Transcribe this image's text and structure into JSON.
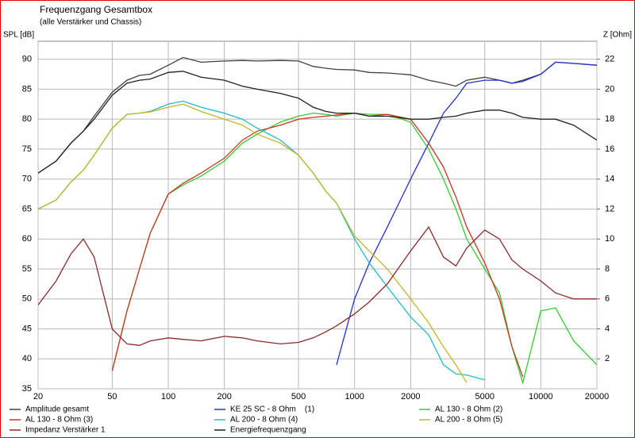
{
  "chart_data": {
    "type": "line",
    "title": "Frequenzgang Gesamtbox",
    "subtitle": "(alle Verstärker und Chassis)",
    "y_label": "SPL [dB]",
    "y2_label": "Z [Ohm]",
    "log_x": true,
    "grid": true,
    "legend": "bottom",
    "xlim": [
      20,
      20000
    ],
    "xticks": [
      20,
      50,
      100,
      200,
      500,
      1000,
      2000,
      5000,
      10000,
      20000
    ],
    "ylim": [
      35,
      93
    ],
    "yticks": [
      35,
      40,
      45,
      50,
      55,
      60,
      65,
      70,
      75,
      80,
      85,
      90
    ],
    "y2lim": [
      0,
      23.2
    ],
    "y2ticks": [
      2,
      4,
      6,
      8,
      10,
      12,
      14,
      16,
      18,
      20,
      22
    ],
    "x": [
      20,
      25,
      30,
      35,
      40,
      50,
      60,
      70,
      80,
      100,
      120,
      150,
      200,
      250,
      300,
      400,
      500,
      600,
      700,
      800,
      1000,
      1200,
      1500,
      2000,
      2500,
      3000,
      3500,
      4000,
      5000,
      6000,
      7000,
      8000,
      10000,
      12000,
      15000,
      20000
    ],
    "series": [
      {
        "name": "Amplitude gesamt",
        "color": "#404040",
        "values": [
          71,
          73,
          76,
          78,
          80.5,
          84.5,
          86.5,
          87.3,
          87.5,
          89,
          90.3,
          89.5,
          89.7,
          89.8,
          89.7,
          89.8,
          89.7,
          88.8,
          88.5,
          88.3,
          88.2,
          87.8,
          87.7,
          87.4,
          86.5,
          86,
          85.5,
          86.5,
          87,
          86.5,
          86,
          86.5,
          87.5,
          89.5,
          89.3,
          89
        ]
      },
      {
        "name": "KE 25 SC - 8 Ohm    (1)",
        "color": "#2233cc",
        "values": [
          null,
          null,
          null,
          null,
          null,
          null,
          null,
          null,
          null,
          null,
          null,
          null,
          null,
          null,
          null,
          null,
          null,
          null,
          null,
          39,
          50,
          56,
          62,
          70,
          76,
          81,
          83.5,
          86,
          86.5,
          86.5,
          86,
          86.3,
          87.5,
          89.5,
          89.3,
          89
        ]
      },
      {
        "name": "AL 130 - 8 Ohm (2)",
        "color": "#33cc33",
        "values": [
          null,
          null,
          null,
          null,
          null,
          38,
          48,
          55,
          61,
          67.5,
          69,
          70.5,
          73,
          76,
          77.5,
          79.5,
          80.5,
          81,
          80.8,
          80.5,
          81,
          80.8,
          80.8,
          79.5,
          75,
          70,
          65,
          60,
          55,
          51,
          42,
          36,
          48,
          48.5,
          43,
          39
        ]
      },
      {
        "name": "AL 130 - 8 Ohm (3)",
        "color": "#cc3322",
        "values": [
          null,
          null,
          null,
          null,
          null,
          38,
          48,
          55,
          61,
          67.5,
          69.3,
          71,
          73.5,
          76.5,
          78,
          79,
          80,
          80.3,
          80.5,
          80.7,
          81,
          80.5,
          80.8,
          80,
          76,
          72,
          67,
          62,
          56,
          50,
          42,
          37,
          null,
          null,
          null,
          null
        ]
      },
      {
        "name": "AL 200 - 8 Ohm (4)",
        "color": "#22bbcc",
        "values": [
          65,
          66.5,
          69.5,
          71.5,
          74,
          78.5,
          80.8,
          81,
          81.3,
          82.5,
          83,
          82,
          81,
          80,
          78.5,
          76.5,
          74,
          71,
          68,
          66,
          60,
          56,
          52,
          47,
          44,
          39,
          37.5,
          37.3,
          36.5,
          null,
          null,
          null,
          null,
          null,
          null,
          null
        ]
      },
      {
        "name": "AL 200 - 8 Ohm (5)",
        "color": "#c8b428",
        "values": [
          65,
          66.5,
          69.5,
          71.5,
          74,
          78.5,
          80.8,
          81,
          81.2,
          82,
          82.5,
          81.3,
          80,
          79,
          77.5,
          76,
          74,
          71,
          68,
          66,
          60.5,
          58,
          55,
          50,
          46,
          42,
          39,
          36,
          null,
          null,
          null,
          null,
          null,
          null,
          null,
          null
        ]
      },
      {
        "name": "Impedanz Verstärker 1",
        "color": "#8b2a2a",
        "axis": "y2",
        "values": [
          5.6,
          7.2,
          9,
          10,
          8.8,
          4,
          3,
          2.9,
          3.2,
          3.4,
          3.3,
          3.2,
          3.5,
          3.4,
          3.2,
          3,
          3.1,
          3.4,
          3.8,
          4.2,
          5,
          5.8,
          7,
          9.2,
          10.8,
          8.8,
          8.2,
          9.4,
          10.6,
          10,
          8.6,
          8,
          7.2,
          6.4,
          6,
          6
        ]
      },
      {
        "name": "Energiefrequenzgang",
        "color": "#202020",
        "values": [
          71,
          73,
          76,
          78,
          80,
          84,
          86,
          86.5,
          86.7,
          87.8,
          88,
          87,
          86.5,
          85.5,
          85,
          84.3,
          83.5,
          82,
          81.3,
          81,
          81,
          80.5,
          80.5,
          80,
          80,
          80.3,
          80.5,
          81,
          81.5,
          81.5,
          81,
          80.3,
          80,
          80,
          79,
          76.5
        ]
      }
    ]
  }
}
